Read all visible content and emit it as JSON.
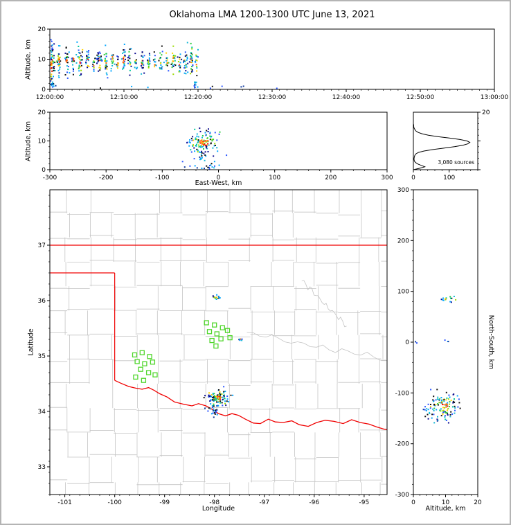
{
  "chart_data": {
    "type": "scatter",
    "subtype": "lightning-mapping-array-multi-panel",
    "title": "Oklahoma LMA 1200-1300 UTC June 13, 2021",
    "cluster_fields": [
      "x_center",
      "y_center",
      "x_sigma",
      "y_sigma",
      "num_points",
      "color_kind"
    ],
    "figure_border_color": "#b4b4b4",
    "palette": {
      "core": [
        "#ff1400",
        "#ff5a00",
        "#ffaa00"
      ],
      "mid": [
        "#ffd400",
        "#9bdb00",
        "#2ecc40",
        "#00c8a0"
      ],
      "outer": [
        "#00a6ff",
        "#2a55ff",
        "#0b0b8f",
        "#15b7d6",
        "#101010"
      ],
      "cool": [
        "#2a55ff",
        "#00a6ff",
        "#103a9e",
        "#16c0dd",
        "#101010"
      ]
    },
    "panels": {
      "time_height": {
        "ylabel": "Altitude, km",
        "ylim": [
          0,
          20
        ],
        "yticks": [
          0,
          10,
          20
        ],
        "xlim_seconds": [
          0,
          3600
        ],
        "xticks_s": [
          0,
          600,
          1200,
          1800,
          2400,
          3000,
          3600
        ],
        "xtick_labels": [
          "12:00:00",
          "12:10:00",
          "12:20:00",
          "12:30:00",
          "12:40:00",
          "12:50:00",
          "13:00:00"
        ],
        "clusters": [
          [
            15,
            8,
            14,
            4,
            70,
            "storm"
          ],
          [
            30,
            1.2,
            20,
            0.8,
            10,
            "cool"
          ],
          [
            75,
            9.5,
            8,
            2.2,
            30,
            "storm"
          ],
          [
            135,
            9,
            10,
            2.5,
            26,
            "storm"
          ],
          [
            190,
            10,
            6,
            1.8,
            16,
            "storm"
          ],
          [
            245,
            9,
            12,
            2.8,
            34,
            "storm"
          ],
          [
            305,
            9.5,
            8,
            2,
            20,
            "storm"
          ],
          [
            355,
            8.5,
            6,
            1.5,
            12,
            "storm"
          ],
          [
            400,
            9.5,
            10,
            2.4,
            28,
            "storm"
          ],
          [
            455,
            9,
            8,
            2,
            22,
            "storm"
          ],
          [
            505,
            10,
            7,
            1.8,
            16,
            "storm"
          ],
          [
            550,
            8.5,
            5,
            1.4,
            10,
            "storm"
          ],
          [
            595,
            9.5,
            9,
            2.2,
            24,
            "storm"
          ],
          [
            645,
            9,
            8,
            2,
            18,
            "storm"
          ],
          [
            695,
            8.5,
            6,
            1.6,
            12,
            "storm"
          ],
          [
            745,
            9.5,
            9,
            2.2,
            22,
            "storm"
          ],
          [
            800,
            9,
            7,
            1.8,
            16,
            "storm"
          ],
          [
            850,
            8.5,
            5,
            1.4,
            10,
            "storm"
          ],
          [
            900,
            9.5,
            8,
            2,
            18,
            "storm"
          ],
          [
            950,
            9,
            6,
            1.6,
            12,
            "storm"
          ],
          [
            1000,
            9.5,
            8,
            2,
            20,
            "storm"
          ],
          [
            1050,
            9,
            7,
            1.8,
            14,
            "storm"
          ],
          [
            1100,
            9,
            9,
            2.2,
            24,
            "storm"
          ],
          [
            1145,
            9.5,
            8,
            2.4,
            30,
            "storm"
          ],
          [
            1175,
            1.5,
            10,
            0.9,
            12,
            "cool"
          ],
          [
            1190,
            8.5,
            6,
            2,
            14,
            "storm"
          ],
          [
            700,
            0.5,
            550,
            0.35,
            9,
            "cool"
          ],
          [
            1330,
            0.7,
            60,
            0.4,
            4,
            "cool"
          ]
        ]
      },
      "ew_height": {
        "xlabel": "East-West, km",
        "ylabel": "Altitude, km",
        "xlim": [
          -300,
          300
        ],
        "xticks": [
          -300,
          -200,
          -100,
          0,
          100,
          200,
          300
        ],
        "ylim": [
          0,
          20
        ],
        "yticks": [
          0,
          10,
          20
        ],
        "clusters": [
          [
            -26,
            9.5,
            17,
            2.4,
            120,
            "storm"
          ],
          [
            -12,
            1.2,
            6,
            0.8,
            14,
            "cool"
          ],
          [
            -45,
            1.5,
            8,
            1,
            6,
            "cool"
          ],
          [
            -32,
            4.5,
            9,
            1.3,
            10,
            "cool"
          ]
        ]
      },
      "height_histogram": {
        "annotation": "3,080 sources",
        "xlim": [
          0,
          180
        ],
        "xticks": [
          0,
          100
        ],
        "ylim": [
          0,
          20
        ],
        "yticks_right": [
          0,
          10,
          20
        ],
        "ytick_labels_right": [
          null,
          null,
          "20"
        ],
        "alt_step_km": 0.5,
        "counts": [
          0,
          18,
          32,
          22,
          12,
          6,
          3,
          2,
          2,
          3,
          4,
          7,
          14,
          30,
          55,
          85,
          115,
          138,
          152,
          158,
          150,
          130,
          100,
          68,
          42,
          24,
          13,
          7,
          4,
          2,
          1,
          1,
          0
        ]
      },
      "plan_view": {
        "xlabel": "Longitude",
        "ylabel": "Latitude",
        "xlim": [
          -101.3,
          -94.54
        ],
        "xticks": [
          -101,
          -100,
          -99,
          -98,
          -97,
          -96,
          -95
        ],
        "ylim": [
          32.5,
          38.0
        ],
        "yticks": [
          33,
          34,
          35,
          36,
          37
        ],
        "station_color": "#4fd62b",
        "county_grid": {
          "color": "#c4c4c4",
          "lon_lines": [
            -100.95,
            -100.5,
            -100.02,
            -99.56,
            -99.1,
            -98.64,
            -98.18,
            -97.72,
            -97.28,
            -96.84,
            -96.4,
            -95.96,
            -95.52,
            -95.08,
            -94.66
          ],
          "lat_lines": [
            32.72,
            33.18,
            33.62,
            34.06,
            34.5,
            34.94,
            35.38,
            35.82,
            36.26,
            36.7,
            37.14,
            37.58
          ]
        },
        "rivers": [
          {
            "from": [
              -97.35,
              35.42
            ],
            "to": [
              -94.56,
              34.95
            ]
          },
          {
            "from": [
              -96.25,
              36.35
            ],
            "to": [
              -95.35,
              35.55
            ]
          }
        ],
        "state_border": {
          "color": "#f00000",
          "kansas_lat": 37.0,
          "panhandle_lat": 36.5,
          "west_lon": -100.0,
          "red_river": [
            [
              -100.0,
              34.56
            ],
            [
              -99.88,
              34.51
            ],
            [
              -99.72,
              34.45
            ],
            [
              -99.58,
              34.42
            ],
            [
              -99.45,
              34.4
            ],
            [
              -99.32,
              34.43
            ],
            [
              -99.21,
              34.38
            ],
            [
              -99.1,
              34.32
            ],
            [
              -98.95,
              34.26
            ],
            [
              -98.8,
              34.17
            ],
            [
              -98.62,
              34.13
            ],
            [
              -98.45,
              34.1
            ],
            [
              -98.32,
              34.14
            ],
            [
              -98.17,
              34.1
            ],
            [
              -98.05,
              34.04
            ],
            [
              -97.92,
              33.96
            ],
            [
              -97.78,
              33.92
            ],
            [
              -97.65,
              33.96
            ],
            [
              -97.52,
              33.93
            ],
            [
              -97.38,
              33.86
            ],
            [
              -97.22,
              33.79
            ],
            [
              -97.08,
              33.78
            ],
            [
              -96.92,
              33.86
            ],
            [
              -96.78,
              33.81
            ],
            [
              -96.62,
              33.8
            ],
            [
              -96.45,
              33.83
            ],
            [
              -96.3,
              33.76
            ],
            [
              -96.12,
              33.73
            ],
            [
              -95.95,
              33.8
            ],
            [
              -95.78,
              33.84
            ],
            [
              -95.6,
              33.82
            ],
            [
              -95.42,
              33.78
            ],
            [
              -95.25,
              33.85
            ],
            [
              -95.08,
              33.8
            ],
            [
              -94.9,
              33.77
            ],
            [
              -94.75,
              33.72
            ],
            [
              -94.6,
              33.68
            ],
            [
              -94.54,
              33.67
            ]
          ]
        },
        "stations": [
          [
            -99.6,
            35.02
          ],
          [
            -99.45,
            35.06
          ],
          [
            -99.3,
            34.99
          ],
          [
            -99.55,
            34.9
          ],
          [
            -99.4,
            34.86
          ],
          [
            -99.24,
            34.89
          ],
          [
            -99.48,
            34.76
          ],
          [
            -99.32,
            34.7
          ],
          [
            -99.58,
            34.62
          ],
          [
            -99.19,
            34.66
          ],
          [
            -99.42,
            34.56
          ],
          [
            -98.16,
            35.6
          ],
          [
            -98.0,
            35.56
          ],
          [
            -97.84,
            35.51
          ],
          [
            -98.1,
            35.44
          ],
          [
            -97.95,
            35.4
          ],
          [
            -97.74,
            35.46
          ],
          [
            -98.05,
            35.28
          ],
          [
            -97.87,
            35.31
          ],
          [
            -97.69,
            35.33
          ],
          [
            -97.97,
            35.18
          ]
        ],
        "clusters": [
          [
            -97.93,
            34.24,
            0.11,
            0.07,
            110,
            "storm"
          ],
          [
            -98.06,
            33.99,
            0.07,
            0.035,
            22,
            "cool"
          ],
          [
            -97.95,
            36.06,
            0.04,
            0.02,
            14,
            "storm"
          ],
          [
            -97.47,
            35.3,
            0.025,
            0.015,
            6,
            "storm"
          ]
        ]
      },
      "ns_height": {
        "xlabel": "Altitude, km",
        "ylabel": "North-South, km",
        "xlim": [
          0,
          20
        ],
        "xticks": [
          0,
          10,
          20
        ],
        "ylim": [
          -300,
          300
        ],
        "yticks": [
          -300,
          -200,
          -100,
          0,
          100,
          200,
          300
        ],
        "clusters": [
          [
            9.5,
            -125,
            2.6,
            14,
            115,
            "storm"
          ],
          [
            4.5,
            -135,
            1.2,
            8,
            10,
            "cool"
          ],
          [
            10.5,
            85,
            1.5,
            2.5,
            16,
            "storm"
          ],
          [
            9.7,
            2,
            0.5,
            1.5,
            3,
            "cool"
          ],
          [
            0.8,
            0,
            0.3,
            1,
            2,
            "cool"
          ]
        ]
      }
    }
  }
}
